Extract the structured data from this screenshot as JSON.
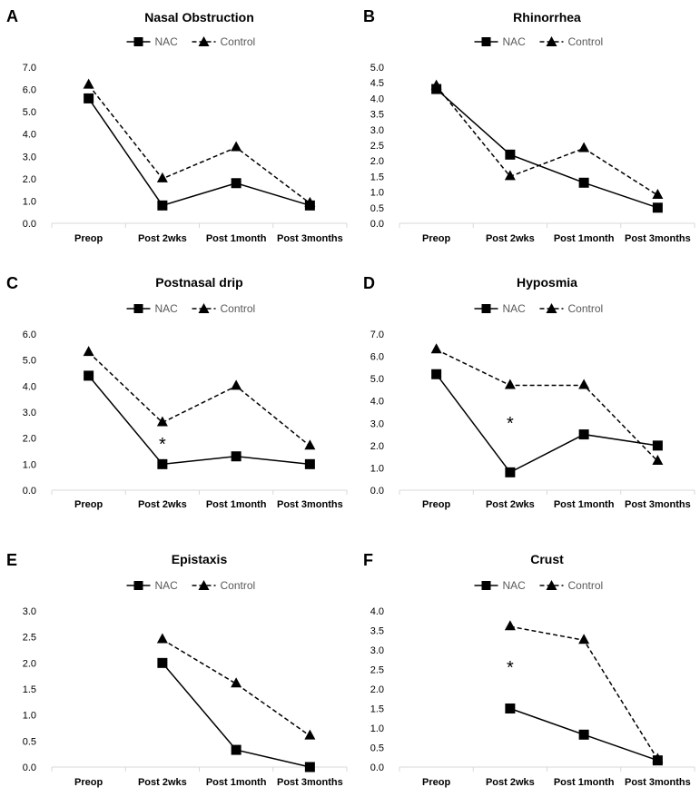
{
  "figure": {
    "legend": {
      "nac_label": "NAC",
      "control_label": "Control"
    }
  },
  "chart_data": [
    {
      "panel_letter": "A",
      "type": "line",
      "title": "Nasal Obstruction",
      "categories": [
        "Preop",
        "Post 2wks",
        "Post 1month",
        "Post 3months"
      ],
      "ylim": [
        0,
        7
      ],
      "y_ticks": [
        "0.0",
        "1.0",
        "2.0",
        "3.0",
        "4.0",
        "5.0",
        "6.0",
        "7.0"
      ],
      "series": [
        {
          "name": "NAC",
          "values": [
            5.6,
            0.8,
            1.8,
            0.8
          ]
        },
        {
          "name": "Control",
          "values": [
            6.2,
            2.0,
            3.4,
            0.9
          ]
        }
      ],
      "annotations": []
    },
    {
      "panel_letter": "B",
      "type": "line",
      "title": "Rhinorrhea",
      "categories": [
        "Preop",
        "Post 2wks",
        "Post 1month",
        "Post 3months"
      ],
      "ylim": [
        0,
        5
      ],
      "y_ticks": [
        "0.0",
        "0.5",
        "1.0",
        "1.5",
        "2.0",
        "2.5",
        "3.0",
        "3.5",
        "4.0",
        "4.5",
        "5.0"
      ],
      "series": [
        {
          "name": "NAC",
          "values": [
            4.3,
            2.2,
            1.3,
            0.5
          ]
        },
        {
          "name": "Control",
          "values": [
            4.4,
            1.5,
            2.4,
            0.9
          ]
        }
      ],
      "annotations": []
    },
    {
      "panel_letter": "C",
      "type": "line",
      "title": "Postnasal drip",
      "categories": [
        "Preop",
        "Post 2wks",
        "Post 1month",
        "Post 3months"
      ],
      "ylim": [
        0,
        6
      ],
      "y_ticks": [
        "0.0",
        "1.0",
        "2.0",
        "3.0",
        "4.0",
        "5.0",
        "6.0"
      ],
      "series": [
        {
          "name": "NAC",
          "values": [
            4.4,
            1.0,
            1.3,
            1.0
          ]
        },
        {
          "name": "Control",
          "values": [
            5.3,
            2.6,
            4.0,
            1.7
          ]
        }
      ],
      "annotations": [
        {
          "text": "*",
          "x": "Post 2wks",
          "y": 1.85
        }
      ]
    },
    {
      "panel_letter": "D",
      "type": "line",
      "title": "Hyposmia",
      "categories": [
        "Preop",
        "Post 2wks",
        "Post 1month",
        "Post 3months"
      ],
      "ylim": [
        0,
        7
      ],
      "y_ticks": [
        "0.0",
        "1.0",
        "2.0",
        "3.0",
        "4.0",
        "5.0",
        "6.0",
        "7.0"
      ],
      "series": [
        {
          "name": "NAC",
          "values": [
            5.2,
            0.8,
            2.5,
            2.0
          ]
        },
        {
          "name": "Control",
          "values": [
            6.3,
            4.7,
            4.7,
            1.3
          ]
        }
      ],
      "annotations": [
        {
          "text": "*",
          "x": "Post 2wks",
          "y": 3.1
        }
      ]
    },
    {
      "panel_letter": "E",
      "type": "line",
      "title": "Epistaxis",
      "categories": [
        "Preop",
        "Post 2wks",
        "Post 1month",
        "Post 3months"
      ],
      "ylim": [
        0,
        3
      ],
      "y_ticks": [
        "0.0",
        "0.5",
        "1.0",
        "1.5",
        "2.0",
        "2.5",
        "3.0"
      ],
      "series": [
        {
          "name": "NAC",
          "values": [
            null,
            2.0,
            0.33,
            0.0
          ]
        },
        {
          "name": "Control",
          "values": [
            null,
            2.45,
            1.6,
            0.6
          ]
        }
      ],
      "annotations": []
    },
    {
      "panel_letter": "F",
      "type": "line",
      "title": "Crust",
      "categories": [
        "Preop",
        "Post 2wks",
        "Post 1month",
        "Post 3months"
      ],
      "ylim": [
        0,
        4
      ],
      "y_ticks": [
        "0.0",
        "0.5",
        "1.0",
        "1.5",
        "2.0",
        "2.5",
        "3.0",
        "3.5",
        "4.0"
      ],
      "series": [
        {
          "name": "NAC",
          "values": [
            null,
            1.5,
            0.83,
            0.17
          ]
        },
        {
          "name": "Control",
          "values": [
            null,
            3.6,
            3.25,
            0.2
          ]
        }
      ],
      "annotations": [
        {
          "text": "*",
          "x": "Post 2wks",
          "y": 2.6
        }
      ]
    }
  ]
}
